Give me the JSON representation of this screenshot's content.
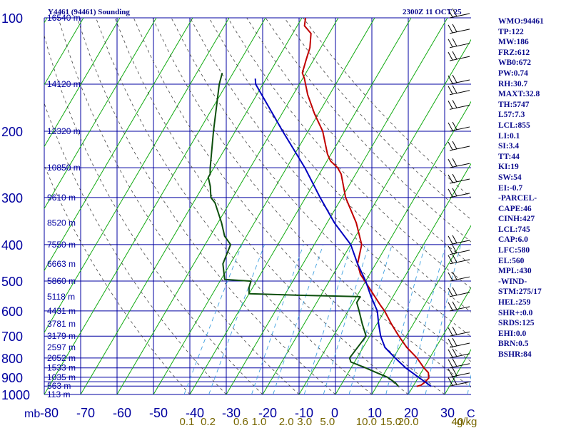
{
  "header": {
    "station": "Y4461 (94461) Sounding",
    "valid_time": "2300Z 11 OCT 25"
  },
  "colors": {
    "grid": "#0000a0",
    "dry_adiabat": "#11aa11",
    "moist_adiabat": "#444444",
    "mixing_ratio": "#3fa0e0",
    "temperature": "#c00000",
    "dewpoint": "#0d4f0d",
    "parcel": "#0000c0",
    "axis_text": "#0000a0",
    "mixing_text": "#776600",
    "panel_text": "#0a0a8c"
  },
  "chart_data": {
    "type": "line",
    "title": "Y4461 (94461) Sounding",
    "subtitle": "2300Z 11 OCT 25",
    "y_axis": {
      "unit": "mb",
      "scale": "log",
      "range": [
        1000,
        100
      ],
      "ticks": [
        100,
        200,
        300,
        400,
        500,
        600,
        700,
        800,
        900,
        1000
      ],
      "extra_lines": [
        150,
        250,
        850,
        925,
        950
      ]
    },
    "x_axis": {
      "label": "C",
      "range": [
        -80,
        35
      ],
      "ticks": [
        -80,
        -70,
        -60,
        -50,
        -40,
        -30,
        -20,
        -10,
        0,
        10,
        20,
        30
      ],
      "tick_labels": [
        "-80",
        "-70",
        "-60",
        "-50",
        "-40",
        "-30",
        "-20",
        "-10",
        "0",
        "10",
        "20",
        "30"
      ]
    },
    "height_labels": [
      {
        "p": 100,
        "text": "16540 m"
      },
      {
        "p": 150,
        "text": "14120 m"
      },
      {
        "p": 200,
        "text": "12320 m"
      },
      {
        "p": 250,
        "text": "10850 m"
      },
      {
        "p": 300,
        "text": "9610 m"
      },
      {
        "p": 350,
        "text": "8520 m"
      },
      {
        "p": 400,
        "text": "7550 m"
      },
      {
        "p": 450,
        "text": "6663 m"
      },
      {
        "p": 500,
        "text": "5860 m"
      },
      {
        "p": 550,
        "text": "5118 m"
      },
      {
        "p": 600,
        "text": "4431 m"
      },
      {
        "p": 650,
        "text": "3781 m"
      },
      {
        "p": 700,
        "text": "3179 m"
      },
      {
        "p": 750,
        "text": "2597 m"
      },
      {
        "p": 800,
        "text": "2052 m"
      },
      {
        "p": 850,
        "text": "1533 m"
      },
      {
        "p": 900,
        "text": "1035 m"
      },
      {
        "p": 950,
        "text": "563 m"
      },
      {
        "p": 1000,
        "text": "113 m"
      }
    ],
    "mixing_ratio_labels": [
      {
        "w": 0.1,
        "t": -40.8,
        "text": "0.1"
      },
      {
        "w": 0.2,
        "t": -35.0,
        "text": "0.2"
      },
      {
        "w": 0.6,
        "t": -26.0,
        "text": "0.6"
      },
      {
        "w": 1.0,
        "t": -21.0,
        "text": "1.0"
      },
      {
        "w": 2.0,
        "t": -13.5,
        "text": "2.0"
      },
      {
        "w": 3.0,
        "t": -8.5,
        "text": "3.0"
      },
      {
        "w": 5.0,
        "t": -2.2,
        "text": "5.0"
      },
      {
        "w": 10.0,
        "t": 8.5,
        "text": "10.0"
      },
      {
        "w": 15.0,
        "t": 15.2,
        "text": "15.0"
      },
      {
        "w": 20.0,
        "t": 20.0,
        "text": "20.0"
      },
      {
        "w": 40.0,
        "t": 33.5,
        "text": "40"
      }
    ],
    "mixing_ratio_unit": "g/kg",
    "series": [
      {
        "name": "Temperature",
        "points": [
          [
            952,
            21.0
          ],
          [
            945,
            22.0
          ],
          [
            930,
            22.5
          ],
          [
            905,
            23.0
          ],
          [
            875,
            22.0
          ],
          [
            850,
            20.0
          ],
          [
            800,
            16.5
          ],
          [
            750,
            12.0
          ],
          [
            700,
            8.0
          ],
          [
            650,
            4.0
          ],
          [
            600,
            0.0
          ],
          [
            580,
            -2.0
          ],
          [
            530,
            -7.0
          ],
          [
            480,
            -12.5
          ],
          [
            450,
            -15.0
          ],
          [
            400,
            -17.0
          ],
          [
            350,
            -22.0
          ],
          [
            300,
            -29.0
          ],
          [
            260,
            -34.0
          ],
          [
            250,
            -36.0
          ],
          [
            240,
            -39.0
          ],
          [
            230,
            -41.0
          ],
          [
            200,
            -46.0
          ],
          [
            180,
            -51.0
          ],
          [
            160,
            -56.0
          ],
          [
            145,
            -59.5
          ],
          [
            140,
            -61.0
          ],
          [
            130,
            -62.0
          ],
          [
            120,
            -63.0
          ],
          [
            110,
            -65.0
          ],
          [
            105,
            -68.0
          ],
          [
            100,
            -69.0
          ]
        ]
      },
      {
        "name": "Dewpoint",
        "points": [
          [
            952,
            16.0
          ],
          [
            930,
            14.5
          ],
          [
            900,
            11.5
          ],
          [
            870,
            7.0
          ],
          [
            850,
            4.0
          ],
          [
            820,
            -1.0
          ],
          [
            800,
            -2.0
          ],
          [
            700,
            -1.0
          ],
          [
            650,
            -4.0
          ],
          [
            600,
            -7.0
          ],
          [
            570,
            -9.0
          ],
          [
            550,
            -9.0
          ],
          [
            545,
            -27.0
          ],
          [
            540,
            -40.0
          ],
          [
            520,
            -41.0
          ],
          [
            500,
            -41.5
          ],
          [
            495,
            -49.0
          ],
          [
            450,
            -52.0
          ],
          [
            400,
            -53.0
          ],
          [
            380,
            -56.0
          ],
          [
            350,
            -59.0
          ],
          [
            310,
            -64.0
          ],
          [
            300,
            -66.0
          ],
          [
            280,
            -68.0
          ],
          [
            265,
            -70.0
          ],
          [
            260,
            -70.0
          ],
          [
            250,
            -71.0
          ],
          [
            200,
            -76.0
          ],
          [
            150,
            -82.0
          ],
          [
            140,
            -83.0
          ]
        ]
      },
      {
        "name": "Parcel",
        "points": [
          [
            952,
            25.0
          ],
          [
            930,
            23.0
          ],
          [
            900,
            20.0
          ],
          [
            850,
            15.0
          ],
          [
            800,
            10.5
          ],
          [
            750,
            6.0
          ],
          [
            700,
            3.0
          ],
          [
            650,
            0.5
          ],
          [
            600,
            -2.0
          ],
          [
            550,
            -6.0
          ],
          [
            500,
            -10.0
          ],
          [
            450,
            -15.0
          ],
          [
            400,
            -20.0
          ],
          [
            350,
            -28.0
          ],
          [
            300,
            -36.0
          ],
          [
            250,
            -45.0
          ],
          [
            200,
            -57.0
          ],
          [
            150,
            -72.0
          ],
          [
            145,
            -73.0
          ]
        ]
      }
    ],
    "wind_barbs": [
      {
        "p": 100
      },
      {
        "p": 110
      },
      {
        "p": 120
      },
      {
        "p": 130
      },
      {
        "p": 150
      },
      {
        "p": 160
      },
      {
        "p": 175
      },
      {
        "p": 200
      },
      {
        "p": 225
      },
      {
        "p": 250
      },
      {
        "p": 275
      },
      {
        "p": 300
      },
      {
        "p": 400
      },
      {
        "p": 425
      },
      {
        "p": 450
      },
      {
        "p": 500
      },
      {
        "p": 550
      },
      {
        "p": 600
      },
      {
        "p": 700
      },
      {
        "p": 750
      },
      {
        "p": 800
      },
      {
        "p": 850
      },
      {
        "p": 900
      },
      {
        "p": 950
      }
    ]
  },
  "indices": [
    "WMO:94461",
    "TP:122",
    "MW:186",
    "FRZ:612",
    "WB0:672",
    "PW:0.74",
    "RH:30.7",
    "MAXT:32.8",
    "TH:5747",
    "L57:7.3",
    "LCL:855",
    "LI:0.1",
    "SI:3.4",
    "TT:44",
    "KI:19",
    "SW:54",
    "EI:-0.7",
    "-PARCEL-",
    "CAPE:46",
    "CINH:427",
    "LCL:745",
    "CAP:6.0",
    "LFC:580",
    "EL:560",
    "MPL:430",
    "-WIND-",
    "STM:275/17",
    "HEL:259",
    "SHR+:0.0",
    "SRDS:125",
    "EHI:0.0",
    "BRN:0.5",
    "BSHR:84"
  ]
}
